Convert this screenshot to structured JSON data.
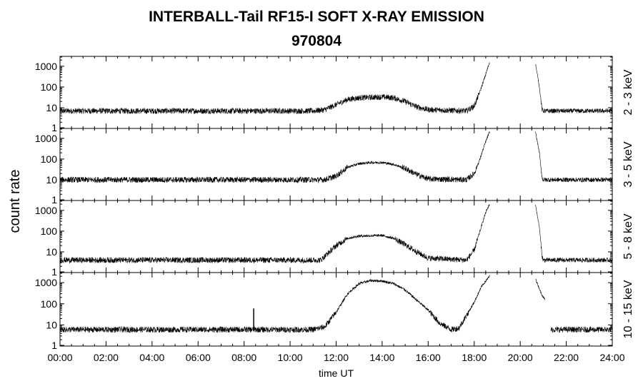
{
  "chart_data": {
    "type": "line",
    "title": "INTERBALL-Tail RF15-I SOFT X-RAY EMISSION",
    "subtitle": "970804",
    "xlabel": "time UT",
    "ylabel": "count rate",
    "xlim": [
      "00:00",
      "24:00"
    ],
    "x_ticks": [
      "00:00",
      "02:00",
      "04:00",
      "06:00",
      "08:00",
      "10:00",
      "12:00",
      "14:00",
      "16:00",
      "18:00",
      "20:00",
      "22:00",
      "24:00"
    ],
    "y_scale": "log",
    "ylim": [
      1,
      3000
    ],
    "y_ticks": [
      "1",
      "10",
      "100",
      "1000"
    ],
    "grid": false,
    "series": [
      {
        "name": "2 - 3 keV",
        "baseline": 7,
        "points": [
          [
            "00:00",
            7
          ],
          [
            "11:00",
            7
          ],
          [
            "11:30",
            8
          ],
          [
            "12:00",
            14
          ],
          [
            "12:30",
            25
          ],
          [
            "13:00",
            30
          ],
          [
            "14:00",
            33
          ],
          [
            "14:30",
            30
          ],
          [
            "15:00",
            20
          ],
          [
            "15:30",
            11
          ],
          [
            "16:00",
            8
          ],
          [
            "17:40",
            7
          ],
          [
            "18:00",
            12
          ],
          [
            "18:15",
            60
          ],
          [
            "18:30",
            400
          ],
          [
            "18:40",
            1600
          ]
        ],
        "gaps": [
          [
            "18:40",
            "20:40"
          ]
        ],
        "post_gap": [
          [
            "20:40",
            1300
          ],
          [
            "20:50",
            100
          ],
          [
            "20:57",
            8
          ],
          [
            "21:00",
            7
          ],
          [
            "24:00",
            7
          ]
        ]
      },
      {
        "name": "3 - 5 keV",
        "baseline": 10,
        "points": [
          [
            "00:00",
            10
          ],
          [
            "11:30",
            10
          ],
          [
            "12:00",
            15
          ],
          [
            "12:30",
            40
          ],
          [
            "13:00",
            60
          ],
          [
            "13:30",
            68
          ],
          [
            "14:00",
            68
          ],
          [
            "14:30",
            55
          ],
          [
            "15:00",
            35
          ],
          [
            "15:30",
            18
          ],
          [
            "16:00",
            11
          ],
          [
            "17:40",
            10
          ],
          [
            "18:00",
            20
          ],
          [
            "18:15",
            100
          ],
          [
            "18:30",
            700
          ],
          [
            "18:40",
            2000
          ]
        ],
        "gaps": [
          [
            "18:40",
            "20:40"
          ]
        ],
        "post_gap": [
          [
            "20:40",
            2000
          ],
          [
            "20:50",
            200
          ],
          [
            "20:57",
            12
          ],
          [
            "21:00",
            10
          ],
          [
            "24:00",
            10
          ]
        ]
      },
      {
        "name": "5 - 8 keV",
        "baseline": 4,
        "points": [
          [
            "00:00",
            4
          ],
          [
            "11:20",
            4
          ],
          [
            "12:00",
            20
          ],
          [
            "12:30",
            45
          ],
          [
            "13:00",
            58
          ],
          [
            "14:00",
            62
          ],
          [
            "14:30",
            45
          ],
          [
            "15:00",
            22
          ],
          [
            "15:30",
            10
          ],
          [
            "16:00",
            5
          ],
          [
            "17:40",
            4
          ],
          [
            "18:00",
            12
          ],
          [
            "18:15",
            100
          ],
          [
            "18:30",
            800
          ],
          [
            "18:40",
            2000
          ]
        ],
        "gaps": [
          [
            "18:40",
            "20:40"
          ]
        ],
        "post_gap": [
          [
            "20:40",
            1800
          ],
          [
            "20:50",
            150
          ],
          [
            "20:57",
            6
          ],
          [
            "21:00",
            4
          ],
          [
            "24:00",
            4
          ]
        ]
      },
      {
        "name": "10 - 15 keV",
        "baseline": 6,
        "points": [
          [
            "00:00",
            6
          ],
          [
            "11:00",
            6
          ],
          [
            "11:30",
            8
          ],
          [
            "12:00",
            40
          ],
          [
            "12:30",
            300
          ],
          [
            "13:00",
            900
          ],
          [
            "13:30",
            1250
          ],
          [
            "14:00",
            1200
          ],
          [
            "14:30",
            900
          ],
          [
            "15:00",
            450
          ],
          [
            "15:30",
            150
          ],
          [
            "16:00",
            50
          ],
          [
            "16:30",
            12
          ],
          [
            "17:00",
            6
          ],
          [
            "17:20",
            7
          ],
          [
            "17:45",
            40
          ],
          [
            "18:00",
            120
          ],
          [
            "18:20",
            700
          ],
          [
            "18:40",
            2000
          ]
        ],
        "gaps": [
          [
            "18:40",
            "20:40"
          ],
          [
            "21:05",
            "21:20"
          ]
        ],
        "post_gap": [
          [
            "20:40",
            1500
          ],
          [
            "20:55",
            300
          ],
          [
            "21:05",
            150
          ]
        ],
        "after_second_gap": [
          [
            "21:20",
            6
          ],
          [
            "24:00",
            6
          ]
        ],
        "spikes": [
          [
            "08:25",
            60
          ]
        ]
      }
    ]
  }
}
